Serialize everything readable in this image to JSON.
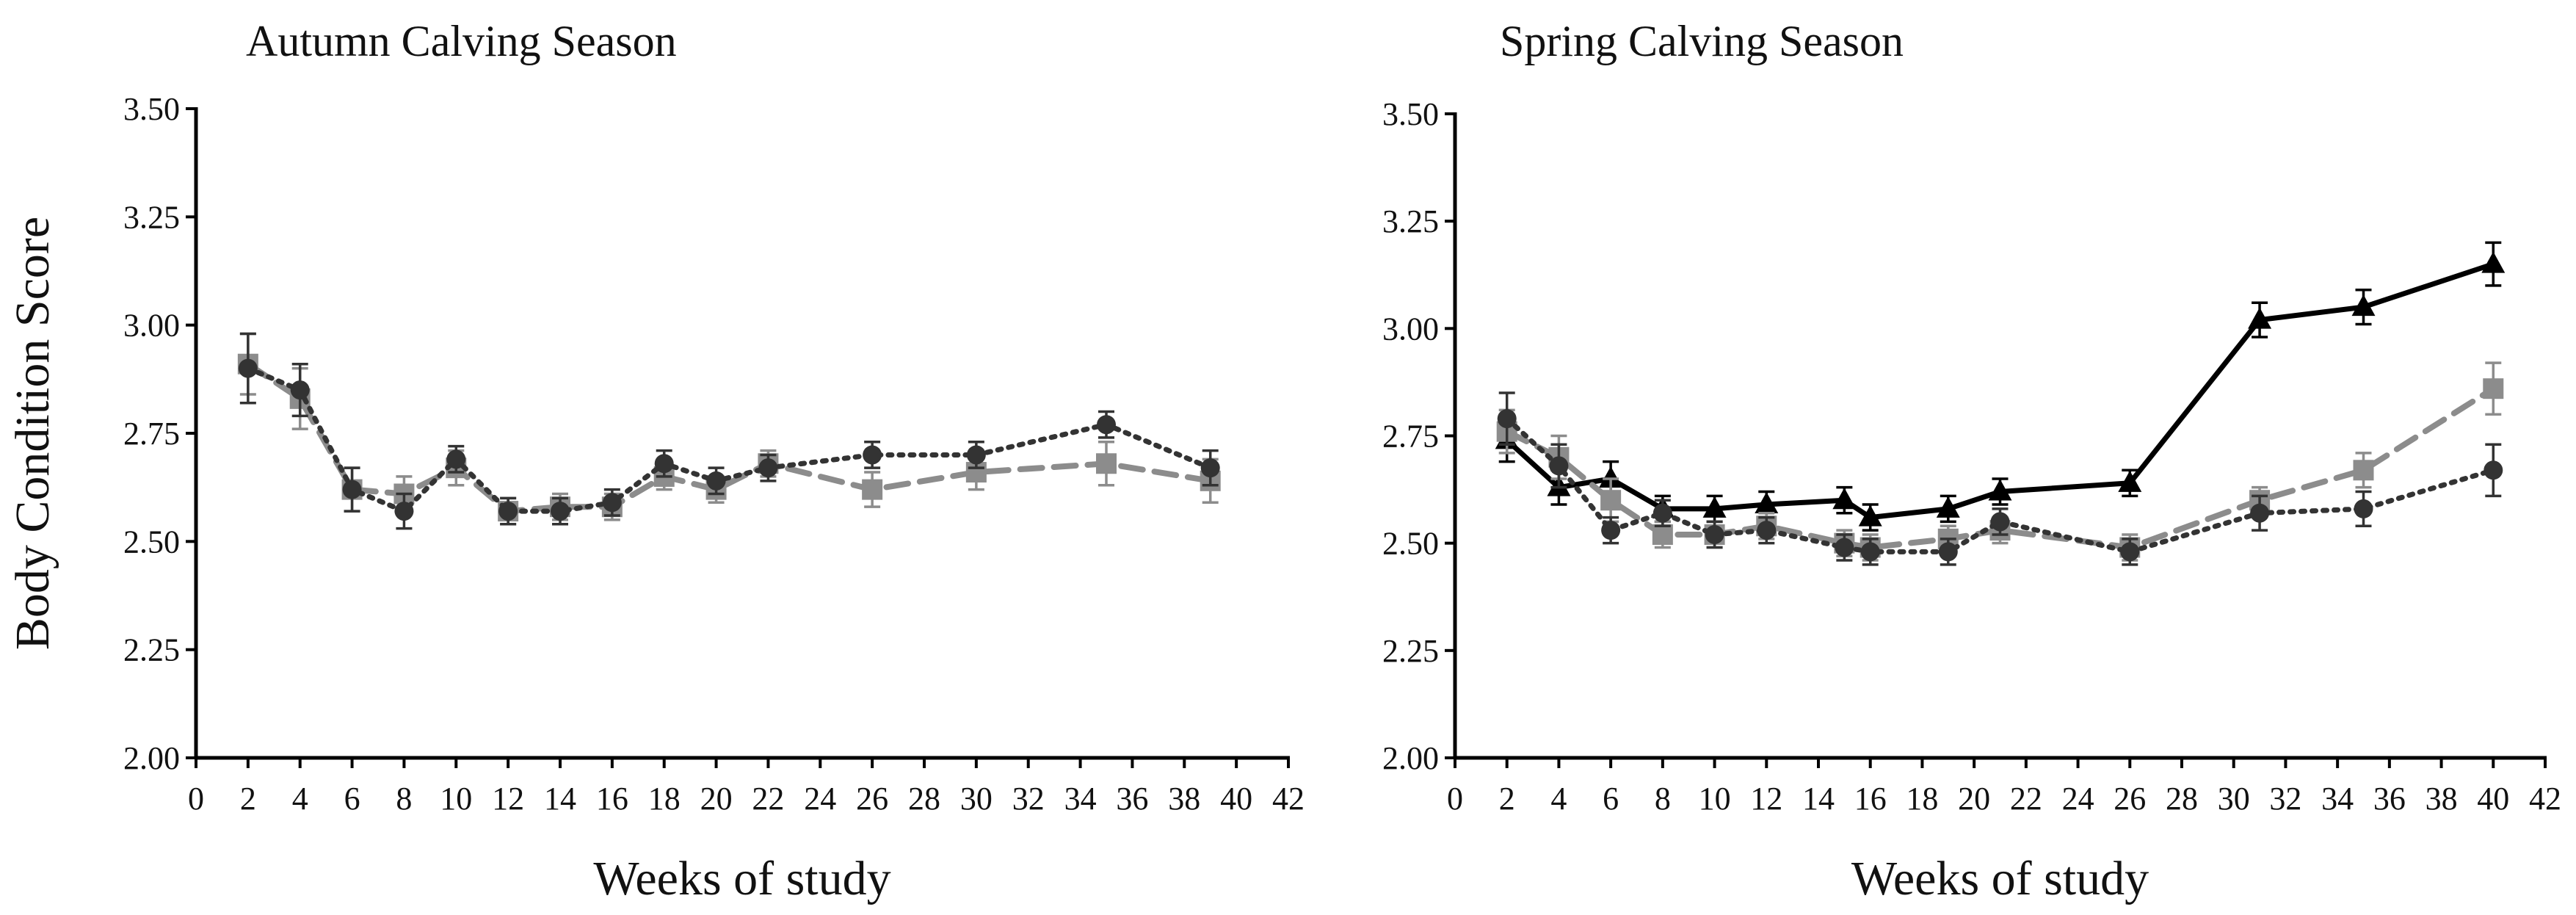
{
  "colors": {
    "dark": "#333333",
    "gray": "#8c8c8c",
    "black": "#000000"
  },
  "chart_data": [
    {
      "type": "line",
      "title": "Autumn Calving Season",
      "xlabel": "Weeks of study",
      "ylabel": "Body Condition Score",
      "xlim": [
        0,
        42
      ],
      "ylim": [
        2.0,
        3.5
      ],
      "xticks": [
        "0",
        "2",
        "4",
        "6",
        "8",
        "10",
        "12",
        "14",
        "16",
        "18",
        "20",
        "22",
        "24",
        "26",
        "28",
        "30",
        "32",
        "34",
        "36",
        "38",
        "40",
        "42"
      ],
      "yticks": [
        "2.00",
        "2.25",
        "2.50",
        "2.75",
        "3.00",
        "3.25",
        "3.50"
      ],
      "series": [
        {
          "name": "gray-square-dashed",
          "marker": "square",
          "line": "dashed",
          "color": "gray",
          "x": [
            2,
            4,
            6,
            8,
            10,
            12,
            14,
            16,
            18,
            20,
            22,
            26,
            30,
            35,
            39
          ],
          "y": [
            2.91,
            2.83,
            2.62,
            2.61,
            2.67,
            2.57,
            2.58,
            2.58,
            2.65,
            2.62,
            2.68,
            2.62,
            2.66,
            2.68,
            2.64
          ],
          "err": [
            0.07,
            0.07,
            0.05,
            0.04,
            0.04,
            0.03,
            0.03,
            0.03,
            0.03,
            0.03,
            0.03,
            0.04,
            0.04,
            0.05,
            0.05
          ]
        },
        {
          "name": "dark-circle-dotted",
          "marker": "circle",
          "line": "dotted",
          "color": "dark",
          "x": [
            2,
            4,
            6,
            8,
            10,
            12,
            14,
            16,
            18,
            20,
            22,
            26,
            30,
            35,
            39
          ],
          "y": [
            2.9,
            2.85,
            2.62,
            2.57,
            2.69,
            2.57,
            2.57,
            2.59,
            2.68,
            2.64,
            2.67,
            2.7,
            2.7,
            2.77,
            2.67
          ],
          "err": [
            0.08,
            0.06,
            0.05,
            0.04,
            0.03,
            0.03,
            0.03,
            0.03,
            0.03,
            0.03,
            0.03,
            0.03,
            0.03,
            0.03,
            0.04
          ]
        }
      ]
    },
    {
      "type": "line",
      "title": "Spring Calving Season",
      "xlabel": "Weeks of study",
      "ylabel": "",
      "xlim": [
        0,
        42
      ],
      "ylim": [
        2.0,
        3.5
      ],
      "xticks": [
        "0",
        "2",
        "4",
        "6",
        "8",
        "10",
        "12",
        "14",
        "16",
        "18",
        "20",
        "22",
        "24",
        "26",
        "28",
        "30",
        "32",
        "34",
        "36",
        "38",
        "40",
        "42"
      ],
      "yticks": [
        "2.00",
        "2.25",
        "2.50",
        "2.75",
        "3.00",
        "3.25",
        "3.50"
      ],
      "series": [
        {
          "name": "black-triangle-solid",
          "marker": "triangle",
          "line": "solid",
          "color": "black",
          "x": [
            2,
            4,
            6,
            8,
            10,
            12,
            15,
            16,
            19,
            21,
            26,
            31,
            35,
            40
          ],
          "y": [
            2.74,
            2.63,
            2.65,
            2.58,
            2.58,
            2.59,
            2.6,
            2.56,
            2.58,
            2.62,
            2.64,
            3.02,
            3.05,
            3.15
          ],
          "err": [
            0.05,
            0.04,
            0.04,
            0.03,
            0.03,
            0.03,
            0.03,
            0.03,
            0.03,
            0.03,
            0.03,
            0.04,
            0.04,
            0.05
          ]
        },
        {
          "name": "gray-square-dashed",
          "marker": "square",
          "line": "dashed",
          "color": "gray",
          "x": [
            2,
            4,
            6,
            8,
            10,
            12,
            15,
            16,
            19,
            21,
            26,
            31,
            35,
            40
          ],
          "y": [
            2.76,
            2.7,
            2.6,
            2.52,
            2.52,
            2.54,
            2.5,
            2.49,
            2.51,
            2.53,
            2.49,
            2.6,
            2.67,
            2.86
          ],
          "err": [
            0.05,
            0.05,
            0.05,
            0.03,
            0.03,
            0.03,
            0.03,
            0.03,
            0.03,
            0.03,
            0.03,
            0.03,
            0.04,
            0.06
          ]
        },
        {
          "name": "dark-circle-dotted",
          "marker": "circle",
          "line": "dotted",
          "color": "dark",
          "x": [
            2,
            4,
            6,
            8,
            10,
            12,
            15,
            16,
            19,
            21,
            26,
            31,
            35,
            40
          ],
          "y": [
            2.79,
            2.68,
            2.53,
            2.57,
            2.52,
            2.53,
            2.49,
            2.48,
            2.48,
            2.55,
            2.48,
            2.57,
            2.58,
            2.67
          ],
          "err": [
            0.06,
            0.05,
            0.03,
            0.03,
            0.03,
            0.03,
            0.03,
            0.03,
            0.03,
            0.03,
            0.03,
            0.04,
            0.04,
            0.06
          ]
        }
      ]
    }
  ]
}
